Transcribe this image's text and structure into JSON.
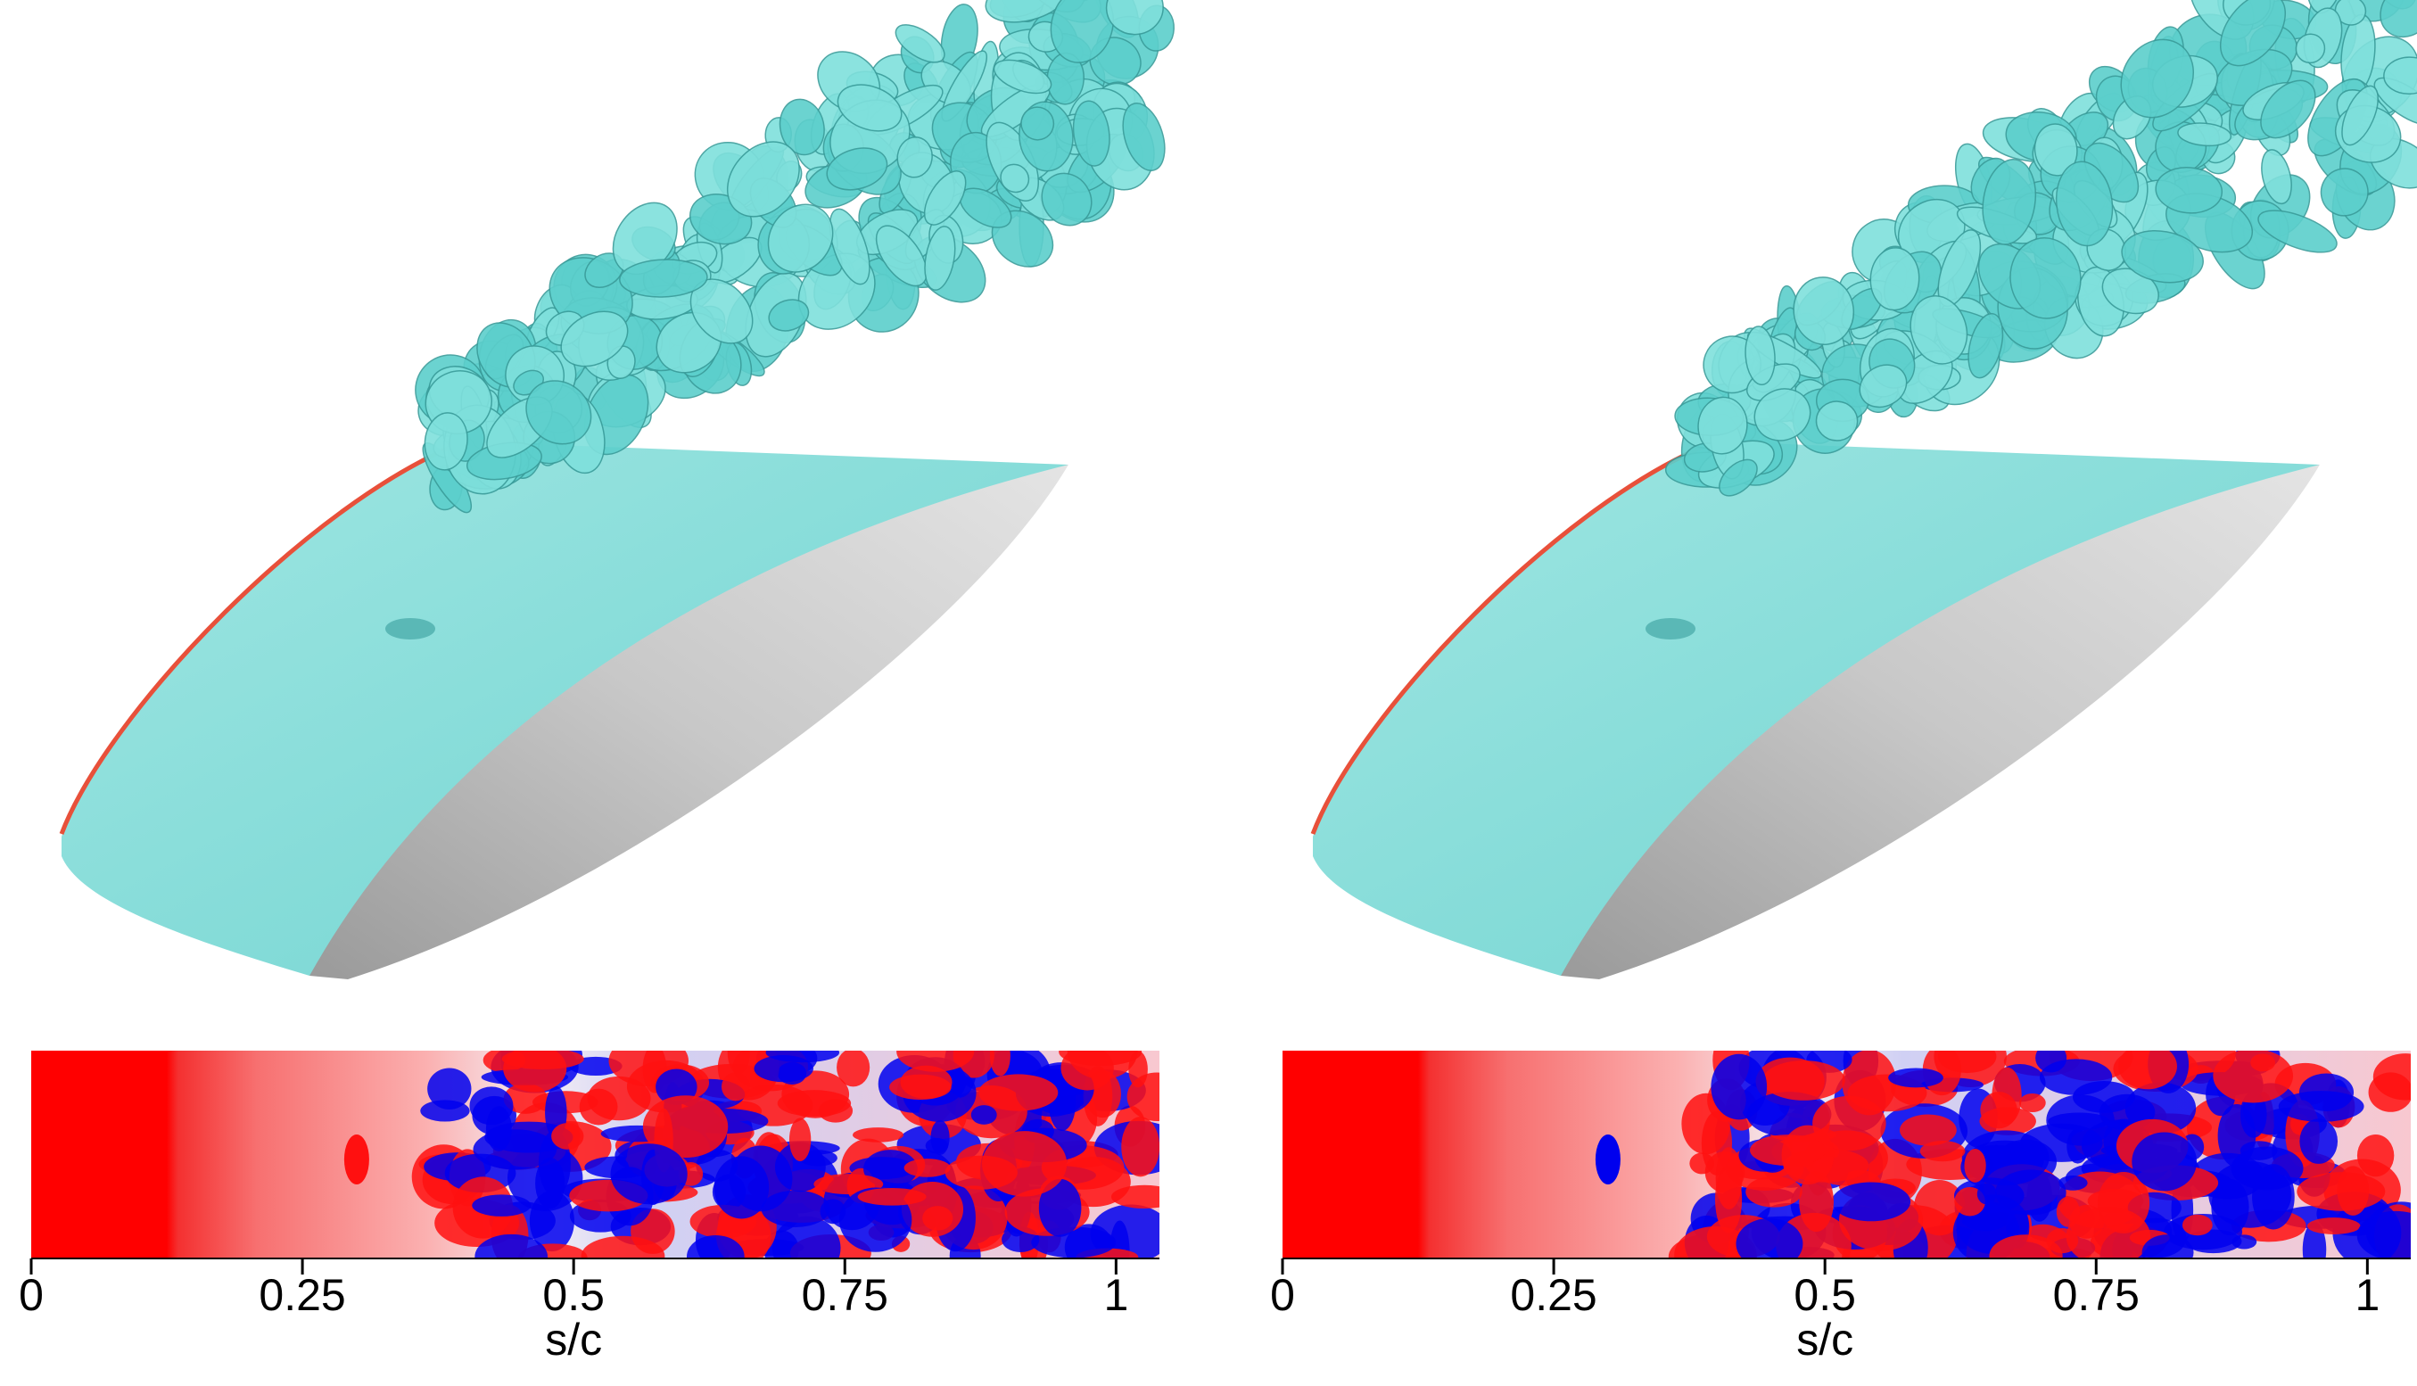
{
  "chart_data": [
    {
      "type": "contour",
      "xlabel": "s/c",
      "xlim": [
        0,
        1.04
      ],
      "xticks": [
        0,
        0.25,
        0.5,
        0.75,
        1
      ]
    },
    {
      "type": "contour",
      "xlabel": "s/c",
      "xlim": [
        0,
        1.04
      ],
      "xticks": [
        0,
        0.25,
        0.5,
        0.75,
        1
      ]
    }
  ]
}
